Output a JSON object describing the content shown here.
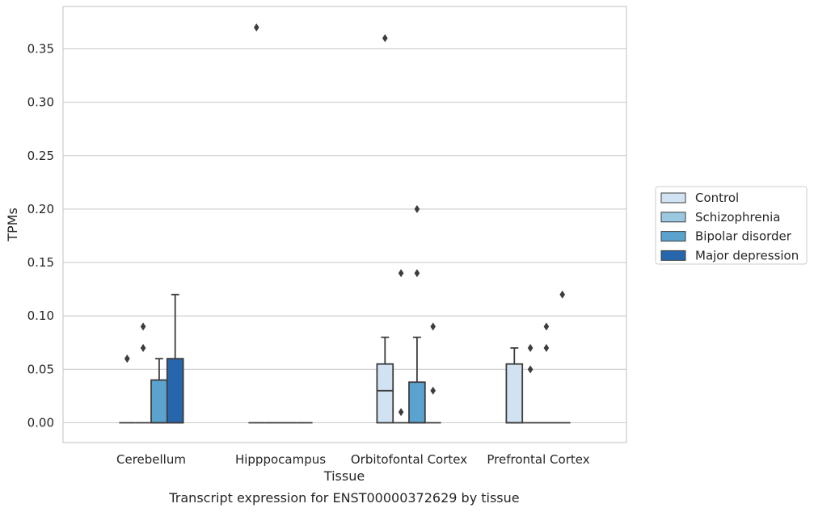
{
  "chart_data": {
    "type": "box",
    "title": "Transcript expression for ENST00000372629 by tissue",
    "xlabel": "Tissue",
    "ylabel": "TPMs",
    "ylim": [
      -0.018,
      0.389
    ],
    "yticks": [
      0.0,
      0.05,
      0.1,
      0.15,
      0.2,
      0.25,
      0.3,
      0.35
    ],
    "ytick_labels": [
      "0.00",
      "0.05",
      "0.10",
      "0.15",
      "0.20",
      "0.25",
      "0.30",
      "0.35"
    ],
    "grid": true,
    "legend_position": "right",
    "categories": [
      "Cerebellum",
      "Hipppocampus",
      "Orbitofontal Cortex",
      "Prefrontal Cortex"
    ],
    "series": [
      {
        "name": "Control",
        "color": "#d1e2f2",
        "boxes": [
          {
            "category": "Cerebellum",
            "q1": 0.0,
            "median": 0.0,
            "q3": 0.0,
            "whisker_low": 0.0,
            "whisker_high": 0.0,
            "outliers": [
              0.06,
              0.06
            ]
          },
          {
            "category": "Hipppocampus",
            "q1": 0.0,
            "median": 0.0,
            "q3": 0.0,
            "whisker_low": 0.0,
            "whisker_high": 0.0,
            "outliers": [
              0.37
            ]
          },
          {
            "category": "Orbitofontal Cortex",
            "q1": 0.0,
            "median": 0.03,
            "q3": 0.055,
            "whisker_low": 0.0,
            "whisker_high": 0.08,
            "outliers": [
              0.36
            ]
          },
          {
            "category": "Prefrontal Cortex",
            "q1": 0.0,
            "median": 0.0,
            "q3": 0.055,
            "whisker_low": 0.0,
            "whisker_high": 0.07,
            "outliers": []
          }
        ]
      },
      {
        "name": "Schizophrenia",
        "color": "#9ac8e0",
        "boxes": [
          {
            "category": "Cerebellum",
            "q1": 0.0,
            "median": 0.0,
            "q3": 0.0,
            "whisker_low": 0.0,
            "whisker_high": 0.0,
            "outliers": [
              0.07,
              0.09
            ]
          },
          {
            "category": "Hipppocampus",
            "q1": 0.0,
            "median": 0.0,
            "q3": 0.0,
            "whisker_low": 0.0,
            "whisker_high": 0.0,
            "outliers": []
          },
          {
            "category": "Orbitofontal Cortex",
            "q1": 0.0,
            "median": 0.0,
            "q3": 0.0,
            "whisker_low": 0.0,
            "whisker_high": 0.0,
            "outliers": [
              0.14,
              0.01
            ]
          },
          {
            "category": "Prefrontal Cortex",
            "q1": 0.0,
            "median": 0.0,
            "q3": 0.0,
            "whisker_low": 0.0,
            "whisker_high": 0.0,
            "outliers": [
              0.07,
              0.05
            ]
          }
        ]
      },
      {
        "name": "Bipolar disorder",
        "color": "#5ba3cf",
        "boxes": [
          {
            "category": "Cerebellum",
            "q1": 0.0,
            "median": 0.0,
            "q3": 0.04,
            "whisker_low": 0.0,
            "whisker_high": 0.06,
            "outliers": []
          },
          {
            "category": "Hipppocampus",
            "q1": 0.0,
            "median": 0.0,
            "q3": 0.0,
            "whisker_low": 0.0,
            "whisker_high": 0.0,
            "outliers": []
          },
          {
            "category": "Orbitofontal Cortex",
            "q1": 0.0,
            "median": 0.0,
            "q3": 0.038,
            "whisker_low": 0.0,
            "whisker_high": 0.08,
            "outliers": [
              0.14,
              0.2
            ]
          },
          {
            "category": "Prefrontal Cortex",
            "q1": 0.0,
            "median": 0.0,
            "q3": 0.0,
            "whisker_low": 0.0,
            "whisker_high": 0.0,
            "outliers": [
              0.09,
              0.07
            ]
          }
        ]
      },
      {
        "name": "Major depression",
        "color": "#2666ac",
        "boxes": [
          {
            "category": "Cerebellum",
            "q1": 0.0,
            "median": 0.0,
            "q3": 0.06,
            "whisker_low": 0.0,
            "whisker_high": 0.12,
            "outliers": []
          },
          {
            "category": "Hipppocampus",
            "q1": 0.0,
            "median": 0.0,
            "q3": 0.0,
            "whisker_low": 0.0,
            "whisker_high": 0.0,
            "outliers": []
          },
          {
            "category": "Orbitofontal Cortex",
            "q1": 0.0,
            "median": 0.0,
            "q3": 0.0,
            "whisker_low": 0.0,
            "whisker_high": 0.0,
            "outliers": [
              0.09,
              0.03
            ]
          },
          {
            "category": "Prefrontal Cortex",
            "q1": 0.0,
            "median": 0.0,
            "q3": 0.0,
            "whisker_low": 0.0,
            "whisker_high": 0.0,
            "outliers": [
              0.12
            ]
          }
        ]
      }
    ]
  },
  "colors": {
    "grid": "#cccccc",
    "box_edge": "#3d3d3d",
    "outlier": "#3d3d3d",
    "frame": "#cccccc"
  }
}
